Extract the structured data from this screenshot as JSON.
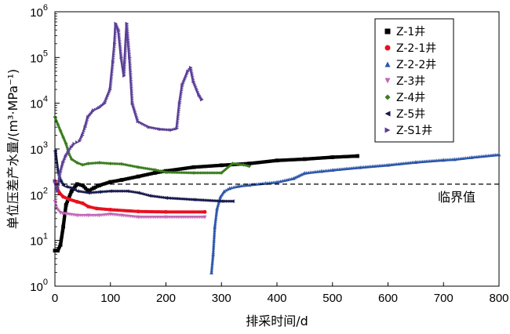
{
  "chart_data": {
    "type": "scatter",
    "xlabel": "排采时间/d",
    "ylabel": "单位压差产水量/(m³·MPa⁻¹)",
    "xlim": [
      0,
      800
    ],
    "xticks": [
      "0",
      "100",
      "200",
      "300",
      "400",
      "500",
      "600",
      "700",
      "800"
    ],
    "ylim": [
      1,
      1000000
    ],
    "yscale": "log",
    "yticks": [
      {
        "base": "10",
        "exp": "0"
      },
      {
        "base": "10",
        "exp": "1"
      },
      {
        "base": "10",
        "exp": "2"
      },
      {
        "base": "10",
        "exp": "3"
      },
      {
        "base": "10",
        "exp": "4"
      },
      {
        "base": "10",
        "exp": "5"
      },
      {
        "base": "10",
        "exp": "6"
      }
    ],
    "grid": false,
    "legend_position": "top-right",
    "reference_line": {
      "label": "临界值",
      "y": 170,
      "style": "dashed"
    },
    "series": [
      {
        "name": "Z-1井",
        "color": "#000000",
        "marker": "square",
        "points": [
          [
            0,
            6
          ],
          [
            5,
            6
          ],
          [
            10,
            8
          ],
          [
            15,
            20
          ],
          [
            20,
            60
          ],
          [
            30,
            120
          ],
          [
            40,
            170
          ],
          [
            50,
            160
          ],
          [
            60,
            120
          ],
          [
            70,
            140
          ],
          [
            80,
            160
          ],
          [
            100,
            190
          ],
          [
            120,
            210
          ],
          [
            150,
            250
          ],
          [
            180,
            300
          ],
          [
            200,
            330
          ],
          [
            250,
            400
          ],
          [
            300,
            440
          ],
          [
            350,
            480
          ],
          [
            400,
            560
          ],
          [
            450,
            600
          ],
          [
            500,
            660
          ],
          [
            545,
            700
          ]
        ]
      },
      {
        "name": "Z-2-1井",
        "color": "#e8101f",
        "marker": "circle",
        "points": [
          [
            0,
            200
          ],
          [
            3,
            150
          ],
          [
            8,
            110
          ],
          [
            15,
            90
          ],
          [
            25,
            80
          ],
          [
            40,
            70
          ],
          [
            50,
            65
          ],
          [
            60,
            55
          ],
          [
            75,
            50
          ],
          [
            100,
            47
          ],
          [
            150,
            43
          ],
          [
            200,
            42
          ],
          [
            270,
            42
          ]
        ]
      },
      {
        "name": "Z-2-2井",
        "color": "#2b55a8",
        "marker": "triangle",
        "points": [
          [
            282,
            2
          ],
          [
            285,
            5
          ],
          [
            288,
            20
          ],
          [
            292,
            50
          ],
          [
            298,
            90
          ],
          [
            305,
            120
          ],
          [
            315,
            140
          ],
          [
            330,
            155
          ],
          [
            350,
            165
          ],
          [
            380,
            180
          ],
          [
            400,
            190
          ],
          [
            430,
            230
          ],
          [
            450,
            300
          ],
          [
            480,
            330
          ],
          [
            500,
            350
          ],
          [
            550,
            400
          ],
          [
            600,
            450
          ],
          [
            650,
            520
          ],
          [
            700,
            580
          ],
          [
            720,
            600
          ],
          [
            750,
            660
          ],
          [
            800,
            760
          ]
        ]
      },
      {
        "name": "Z-3井",
        "color": "#c067b6",
        "marker": "triangle-down",
        "points": [
          [
            0,
            70
          ],
          [
            3,
            50
          ],
          [
            10,
            40
          ],
          [
            20,
            38
          ],
          [
            40,
            35
          ],
          [
            60,
            35
          ],
          [
            80,
            35
          ],
          [
            100,
            37
          ],
          [
            120,
            35
          ],
          [
            150,
            32
          ],
          [
            200,
            32
          ],
          [
            270,
            32
          ]
        ]
      },
      {
        "name": "Z-4井",
        "color": "#3a7d1e",
        "marker": "diamond",
        "points": [
          [
            0,
            5000
          ],
          [
            5,
            3500
          ],
          [
            10,
            2500
          ],
          [
            15,
            1800
          ],
          [
            20,
            1300
          ],
          [
            25,
            800
          ],
          [
            30,
            600
          ],
          [
            40,
            500
          ],
          [
            50,
            450
          ],
          [
            60,
            480
          ],
          [
            80,
            500
          ],
          [
            100,
            480
          ],
          [
            120,
            470
          ],
          [
            150,
            400
          ],
          [
            180,
            350
          ],
          [
            200,
            310
          ],
          [
            250,
            300
          ],
          [
            300,
            300
          ],
          [
            320,
            480
          ],
          [
            340,
            450
          ],
          [
            350,
            420
          ]
        ]
      },
      {
        "name": "Z-5井",
        "color": "#17184d",
        "marker": "triangle-left",
        "points": [
          [
            0,
            900
          ],
          [
            5,
            300
          ],
          [
            10,
            200
          ],
          [
            15,
            160
          ],
          [
            20,
            150
          ],
          [
            30,
            140
          ],
          [
            40,
            120
          ],
          [
            60,
            110
          ],
          [
            80,
            115
          ],
          [
            100,
            120
          ],
          [
            130,
            120
          ],
          [
            150,
            110
          ],
          [
            170,
            95
          ],
          [
            200,
            85
          ],
          [
            250,
            78
          ],
          [
            300,
            72
          ],
          [
            320,
            72
          ]
        ]
      },
      {
        "name": "Z-S1井",
        "color": "#5a3e96",
        "marker": "triangle-right",
        "points": [
          [
            0,
            200
          ],
          [
            5,
            120
          ],
          [
            10,
            300
          ],
          [
            15,
            500
          ],
          [
            20,
            700
          ],
          [
            25,
            900
          ],
          [
            30,
            1100
          ],
          [
            35,
            1300
          ],
          [
            40,
            1400
          ],
          [
            45,
            1500
          ],
          [
            50,
            2000
          ],
          [
            55,
            3000
          ],
          [
            60,
            5000
          ],
          [
            70,
            7000
          ],
          [
            80,
            8000
          ],
          [
            90,
            10000
          ],
          [
            100,
            20000
          ],
          [
            105,
            80000
          ],
          [
            108,
            200000
          ],
          [
            110,
            550000
          ],
          [
            115,
            400000
          ],
          [
            120,
            100000
          ],
          [
            125,
            40000
          ],
          [
            130,
            550000
          ],
          [
            135,
            100000
          ],
          [
            140,
            10000
          ],
          [
            150,
            4000
          ],
          [
            170,
            3000
          ],
          [
            190,
            2700
          ],
          [
            210,
            2600
          ],
          [
            220,
            2800
          ],
          [
            225,
            10000
          ],
          [
            230,
            25000
          ],
          [
            240,
            50000
          ],
          [
            245,
            60000
          ],
          [
            250,
            30000
          ],
          [
            260,
            15000
          ],
          [
            265,
            12000
          ]
        ]
      }
    ]
  }
}
